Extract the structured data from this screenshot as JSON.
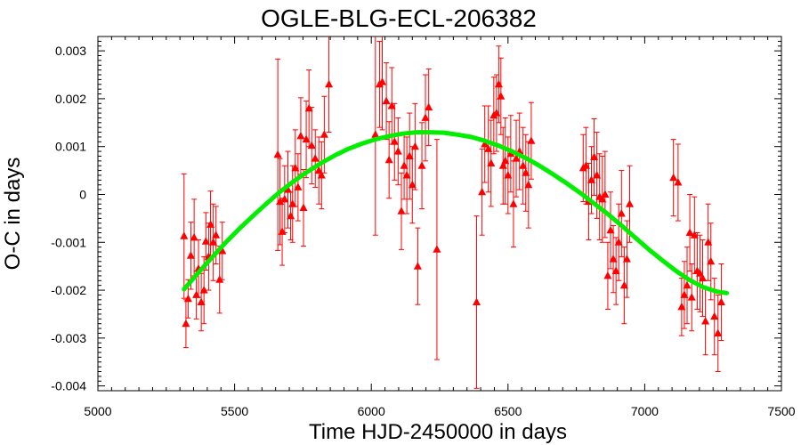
{
  "chart_data": {
    "type": "scatter",
    "title": "OGLE-BLG-ECL-206382",
    "xlabel": "Time HJD-2450000 in days",
    "ylabel": "O-C in days",
    "xlim": [
      5000,
      7500
    ],
    "ylim": [
      -0.0041,
      0.0033
    ],
    "xticks": [
      5000,
      5500,
      6000,
      6500,
      7000,
      7500
    ],
    "xtick_labels": [
      "5000",
      "5500",
      "6000",
      "6500",
      "7000",
      "7500"
    ],
    "yticks": [
      0.003,
      0.002,
      0.001,
      0,
      -0.001,
      -0.002,
      -0.003,
      -0.004
    ],
    "ytick_labels": [
      "0.003",
      "0.002",
      "0.001",
      "0",
      "-0.001",
      "-0.002",
      "-0.003",
      "-0.004"
    ],
    "grid": false,
    "colors": {
      "points": "#ff0000",
      "fit": "#00ee00"
    },
    "series": [
      {
        "marker": "triangle",
        "points": [
          {
            "x": 5315,
            "y": -0.00087,
            "err": 0.0013
          },
          {
            "x": 5322,
            "y": -0.0027,
            "err": 0.0005
          },
          {
            "x": 5330,
            "y": -0.00218,
            "err": 0.0004
          },
          {
            "x": 5340,
            "y": -0.00128,
            "err": 0.0007
          },
          {
            "x": 5352,
            "y": -0.0009,
            "err": 0.0008
          },
          {
            "x": 5360,
            "y": -0.0021,
            "err": 0.0005
          },
          {
            "x": 5368,
            "y": -0.00155,
            "err": 0.0006
          },
          {
            "x": 5378,
            "y": -0.00225,
            "err": 0.0006
          },
          {
            "x": 5388,
            "y": -0.002,
            "err": 0.0007
          },
          {
            "x": 5395,
            "y": -0.00098,
            "err": 0.0006
          },
          {
            "x": 5405,
            "y": -0.0013,
            "err": 0.0007
          },
          {
            "x": 5412,
            "y": -0.00063,
            "err": 0.0007
          },
          {
            "x": 5422,
            "y": -0.001,
            "err": 0.0008
          },
          {
            "x": 5432,
            "y": -0.00085,
            "err": 0.0006
          },
          {
            "x": 5445,
            "y": -0.00178,
            "err": 0.0007
          },
          {
            "x": 5455,
            "y": -0.00118,
            "err": 0.0006
          },
          {
            "x": 5658,
            "y": 0.00083,
            "err": 0.002
          },
          {
            "x": 5666,
            "y": -0.00015,
            "err": 0.0009
          },
          {
            "x": 5674,
            "y": -0.00078,
            "err": 0.0007
          },
          {
            "x": 5683,
            "y": -0.0001,
            "err": 0.0007
          },
          {
            "x": 5695,
            "y": 0.0001,
            "err": 0.0008
          },
          {
            "x": 5705,
            "y": -0.00045,
            "err": 0.0005
          },
          {
            "x": 5712,
            "y": -0.0002,
            "err": 0.0008
          },
          {
            "x": 5722,
            "y": 0.00055,
            "err": 0.0008
          },
          {
            "x": 5732,
            "y": 0.00015,
            "err": 0.0007
          },
          {
            "x": 5742,
            "y": 0.00122,
            "err": 0.0008
          },
          {
            "x": 5752,
            "y": -0.00028,
            "err": 0.0008
          },
          {
            "x": 5762,
            "y": 0.00115,
            "err": 0.0008
          },
          {
            "x": 5772,
            "y": 0.0018,
            "err": 0.0008
          },
          {
            "x": 5782,
            "y": 0.00102,
            "err": 0.0008
          },
          {
            "x": 5795,
            "y": 0.00075,
            "err": 0.0006
          },
          {
            "x": 5808,
            "y": 0.0005,
            "err": 0.0007
          },
          {
            "x": 5818,
            "y": 0.0004,
            "err": 0.0007
          },
          {
            "x": 5828,
            "y": 0.00125,
            "err": 0.0008
          },
          {
            "x": 5845,
            "y": 0.0023,
            "err": 0.001
          },
          {
            "x": 6015,
            "y": 0.00125,
            "err": 0.0021
          },
          {
            "x": 6030,
            "y": 0.0023,
            "err": 0.0009
          },
          {
            "x": 6040,
            "y": 0.00235,
            "err": 0.001
          },
          {
            "x": 6055,
            "y": 0.00195,
            "err": 0.0008
          },
          {
            "x": 6065,
            "y": 0.00072,
            "err": 0.0008
          },
          {
            "x": 6075,
            "y": 0.00185,
            "err": 0.0008
          },
          {
            "x": 6085,
            "y": 0.0011,
            "err": 0.0008
          },
          {
            "x": 6098,
            "y": 0.0009,
            "err": 0.0007
          },
          {
            "x": 6110,
            "y": -0.00035,
            "err": 0.0008
          },
          {
            "x": 6120,
            "y": 0.0006,
            "err": 0.0007
          },
          {
            "x": 6130,
            "y": 0.0004,
            "err": 0.0008
          },
          {
            "x": 6140,
            "y": 0.0008,
            "err": 0.0009
          },
          {
            "x": 6150,
            "y": 0.0002,
            "err": 0.0008
          },
          {
            "x": 6160,
            "y": 0.001,
            "err": 0.0009
          },
          {
            "x": 6170,
            "y": -0.0015,
            "err": 0.0008
          },
          {
            "x": 6185,
            "y": 0.0006,
            "err": 0.0009
          },
          {
            "x": 6198,
            "y": 0.0016,
            "err": 0.0009
          },
          {
            "x": 6210,
            "y": 0.00182,
            "err": 0.0008
          },
          {
            "x": 6240,
            "y": -0.00115,
            "err": 0.0023
          },
          {
            "x": 6385,
            "y": -0.00225,
            "err": 0.0018
          },
          {
            "x": 6405,
            "y": 5e-05,
            "err": 0.0009
          },
          {
            "x": 6415,
            "y": 0.00105,
            "err": 0.0008
          },
          {
            "x": 6428,
            "y": 0.00095,
            "err": 0.0009
          },
          {
            "x": 6438,
            "y": 0.00065,
            "err": 0.0009
          },
          {
            "x": 6448,
            "y": 0.00165,
            "err": 0.0008
          },
          {
            "x": 6458,
            "y": 0.0017,
            "err": 0.0008
          },
          {
            "x": 6466,
            "y": 0.0023,
            "err": 0.0008
          },
          {
            "x": 6474,
            "y": 0.00205,
            "err": 0.0008
          },
          {
            "x": 6482,
            "y": 0.0006,
            "err": 0.0008
          },
          {
            "x": 6490,
            "y": 0.0007,
            "err": 0.0009
          },
          {
            "x": 6500,
            "y": 0.0004,
            "err": 0.0008
          },
          {
            "x": 6510,
            "y": 0.00085,
            "err": 0.0008
          },
          {
            "x": 6520,
            "y": -0.0002,
            "err": 0.0009
          },
          {
            "x": 6530,
            "y": 0.00075,
            "err": 0.0008
          },
          {
            "x": 6542,
            "y": 0.0009,
            "err": 0.0008
          },
          {
            "x": 6555,
            "y": 0.0006,
            "err": 0.0008
          },
          {
            "x": 6565,
            "y": 0.00045,
            "err": 0.0008
          },
          {
            "x": 6575,
            "y": 0.0002,
            "err": 0.0009
          },
          {
            "x": 6585,
            "y": 0.00112,
            "err": 0.0008
          },
          {
            "x": 6775,
            "y": 0.00055,
            "err": 0.0007
          },
          {
            "x": 6785,
            "y": 0.0006,
            "err": 0.0008
          },
          {
            "x": 6795,
            "y": -0.00015,
            "err": 0.0008
          },
          {
            "x": 6805,
            "y": 0.0003,
            "err": 0.0007
          },
          {
            "x": 6815,
            "y": 0.00078,
            "err": 0.0008
          },
          {
            "x": 6825,
            "y": 0.0004,
            "err": 0.0009
          },
          {
            "x": 6835,
            "y": -5e-05,
            "err": 0.0009
          },
          {
            "x": 6845,
            "y": -0.0001,
            "err": 0.0009
          },
          {
            "x": 6855,
            "y": 0.0,
            "err": 0.0009
          },
          {
            "x": 6865,
            "y": -0.0017,
            "err": 0.0007
          },
          {
            "x": 6875,
            "y": -0.00075,
            "err": 0.0008
          },
          {
            "x": 6885,
            "y": -0.00135,
            "err": 0.0007
          },
          {
            "x": 6895,
            "y": -0.0016,
            "err": 0.0007
          },
          {
            "x": 6905,
            "y": -0.001,
            "err": 0.0008
          },
          {
            "x": 6915,
            "y": -0.0004,
            "err": 0.0009
          },
          {
            "x": 6925,
            "y": -0.0019,
            "err": 0.0008
          },
          {
            "x": 6935,
            "y": -0.00135,
            "err": 0.0008
          },
          {
            "x": 6945,
            "y": -0.0002,
            "err": 0.0008
          },
          {
            "x": 7105,
            "y": 0.00035,
            "err": 0.0008
          },
          {
            "x": 7122,
            "y": 0.00025,
            "err": 0.0008
          },
          {
            "x": 7135,
            "y": -0.00235,
            "err": 0.0006
          },
          {
            "x": 7145,
            "y": -0.0021,
            "err": 0.0007
          },
          {
            "x": 7155,
            "y": -0.0019,
            "err": 0.0008
          },
          {
            "x": 7165,
            "y": -0.0008,
            "err": 0.0008
          },
          {
            "x": 7172,
            "y": -0.00215,
            "err": 0.0007
          },
          {
            "x": 7182,
            "y": -0.00085,
            "err": 0.0008
          },
          {
            "x": 7192,
            "y": -0.0016,
            "err": 0.0008
          },
          {
            "x": 7202,
            "y": -0.00165,
            "err": 0.0008
          },
          {
            "x": 7212,
            "y": -0.00175,
            "err": 0.0008
          },
          {
            "x": 7222,
            "y": -0.00265,
            "err": 0.0007
          },
          {
            "x": 7232,
            "y": -0.001,
            "err": 0.0008
          },
          {
            "x": 7242,
            "y": -0.0014,
            "err": 0.0008
          },
          {
            "x": 7255,
            "y": -0.00255,
            "err": 0.0008
          },
          {
            "x": 7268,
            "y": -0.0029,
            "err": 0.0008
          },
          {
            "x": 7280,
            "y": -0.00225,
            "err": 0.0008
          }
        ]
      },
      {
        "line": true,
        "x": [
          5315,
          5365,
          5415,
          5465,
          5515,
          5565,
          5615,
          5665,
          5715,
          5765,
          5815,
          5865,
          5915,
          5965,
          6015,
          6065,
          6115,
          6165,
          6215,
          6265,
          6315,
          6365,
          6415,
          6465,
          6515,
          6565,
          6615,
          6665,
          6715,
          6765,
          6815,
          6865,
          6915,
          6965,
          7015,
          7065,
          7115,
          7165,
          7215,
          7265,
          7300
        ],
        "y": [
          -0.00198,
          -0.00165,
          -0.00133,
          -0.00102,
          -0.00073,
          -0.00046,
          -0.0002,
          5e-05,
          0.00027,
          0.00047,
          0.00065,
          0.00081,
          0.00095,
          0.00106,
          0.00115,
          0.00122,
          0.00127,
          0.0013,
          0.0013,
          0.00129,
          0.00125,
          0.0012,
          0.00112,
          0.00102,
          0.0009,
          0.00076,
          0.0006,
          0.00042,
          0.00023,
          3e-05,
          -0.00019,
          -0.00041,
          -0.00065,
          -0.0009,
          -0.00115,
          -0.00138,
          -0.0016,
          -0.00179,
          -0.00194,
          -0.00203,
          -0.00206
        ]
      }
    ]
  }
}
